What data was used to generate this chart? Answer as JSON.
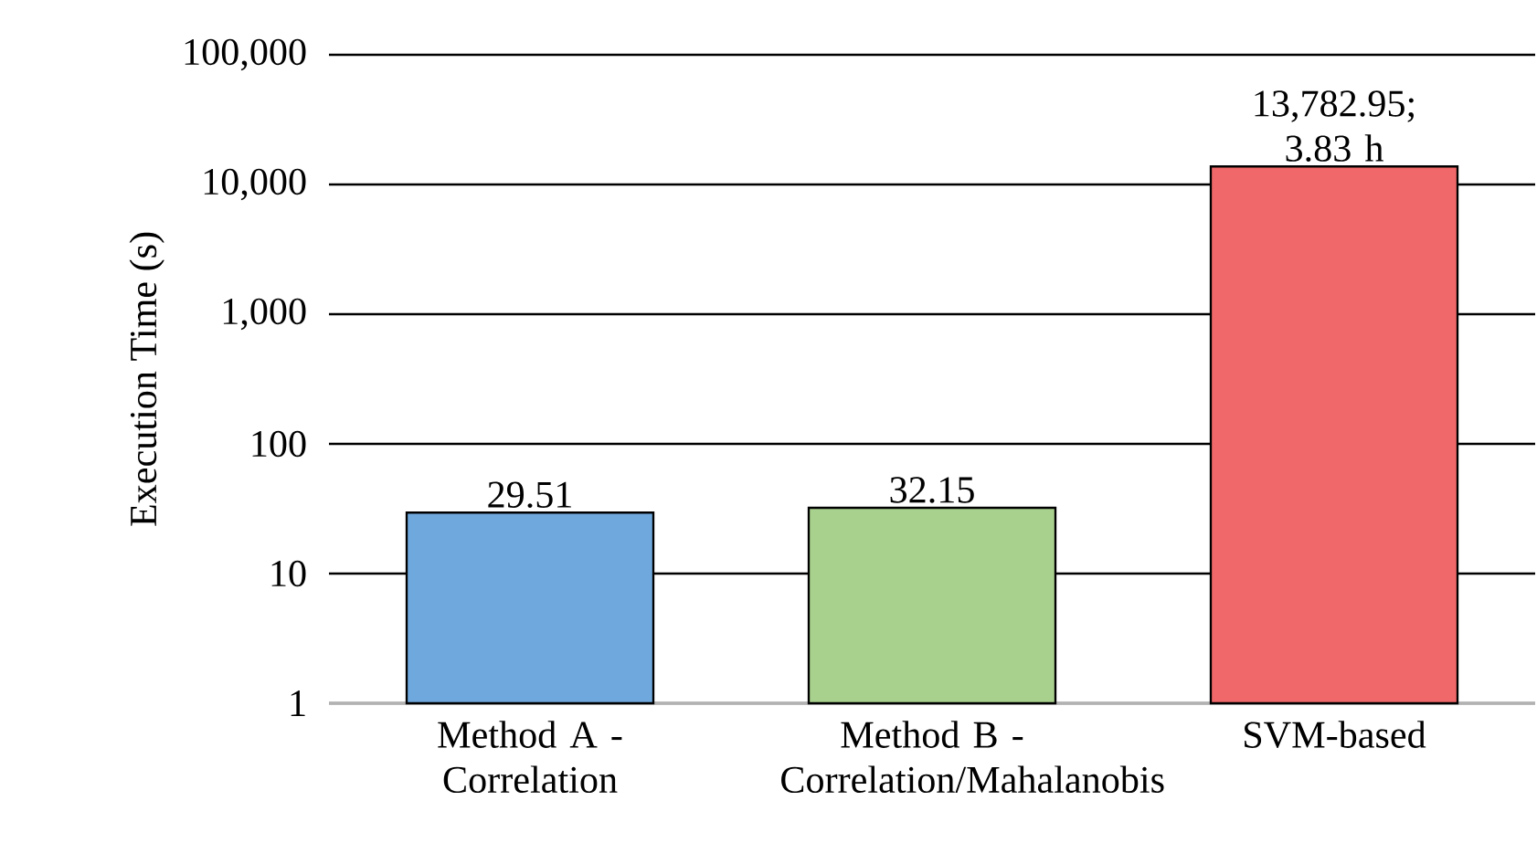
{
  "chart_data": {
    "type": "bar",
    "ylabel": "Execution Time (s)",
    "categories": [
      "Method A - Correlation",
      "Method B - Correlation/Mahalanobis",
      "SVM-based"
    ],
    "values": [
      29.51,
      32.15,
      13782.95
    ],
    "colors": [
      "#6fa8dc",
      "#a9d18e",
      "#f0686a"
    ],
    "value_labels": [
      "29.51",
      "32.15",
      "13,782.95; 3.83 h"
    ],
    "log": "y",
    "ylim": [
      1,
      100000
    ],
    "yticks": [
      {
        "value": 1,
        "label": "1"
      },
      {
        "value": 10,
        "label": "10"
      },
      {
        "value": 100,
        "label": "100"
      },
      {
        "value": 1000,
        "label": "1,000"
      },
      {
        "value": 10000,
        "label": "10,000"
      },
      {
        "value": 100000,
        "label": "100,000"
      }
    ],
    "grid": "y"
  }
}
